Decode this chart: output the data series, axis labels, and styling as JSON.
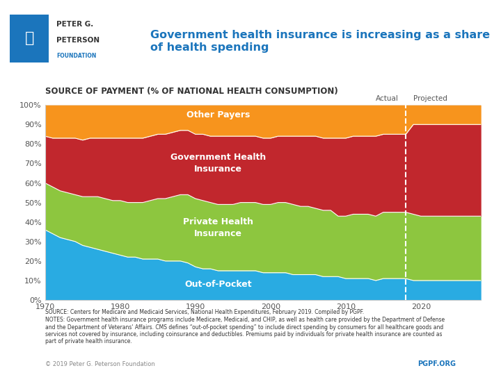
{
  "title": "Government health insurance is increasing as a share of health spending",
  "subtitle": "Source of Payment (% of National Health Consumption)",
  "years": [
    1970,
    1971,
    1972,
    1973,
    1974,
    1975,
    1976,
    1977,
    1978,
    1979,
    1980,
    1981,
    1982,
    1983,
    1984,
    1985,
    1986,
    1987,
    1988,
    1989,
    1990,
    1991,
    1992,
    1993,
    1994,
    1995,
    1996,
    1997,
    1998,
    1999,
    2000,
    2001,
    2002,
    2003,
    2004,
    2005,
    2006,
    2007,
    2008,
    2009,
    2010,
    2011,
    2012,
    2013,
    2014,
    2015,
    2016,
    2017,
    2018,
    2019,
    2020,
    2021,
    2022,
    2023,
    2024,
    2025,
    2026,
    2027,
    2028
  ],
  "out_of_pocket": [
    36,
    34,
    32,
    31,
    30,
    28,
    27,
    26,
    25,
    24,
    23,
    22,
    22,
    21,
    21,
    21,
    20,
    20,
    20,
    19,
    17,
    16,
    16,
    15,
    15,
    15,
    15,
    15,
    15,
    14,
    14,
    14,
    14,
    13,
    13,
    13,
    13,
    12,
    12,
    12,
    11,
    11,
    11,
    11,
    10,
    11,
    11,
    11,
    11,
    10,
    10,
    10,
    10,
    10,
    10,
    10,
    10,
    10,
    10
  ],
  "private_health": [
    24,
    24,
    24,
    24,
    24,
    25,
    26,
    27,
    27,
    27,
    28,
    28,
    28,
    29,
    30,
    31,
    32,
    33,
    34,
    35,
    35,
    35,
    34,
    34,
    34,
    34,
    35,
    35,
    35,
    35,
    35,
    36,
    36,
    36,
    35,
    35,
    34,
    34,
    34,
    31,
    32,
    33,
    33,
    33,
    33,
    34,
    34,
    34,
    34,
    34,
    33,
    33,
    33,
    33,
    33,
    33,
    33,
    33,
    33
  ],
  "government_health": [
    24,
    25,
    27,
    28,
    29,
    29,
    30,
    30,
    31,
    32,
    32,
    33,
    33,
    33,
    33,
    33,
    33,
    33,
    33,
    33,
    33,
    34,
    34,
    35,
    35,
    35,
    34,
    34,
    34,
    34,
    34,
    34,
    34,
    35,
    36,
    36,
    37,
    37,
    37,
    40,
    40,
    40,
    40,
    40,
    41,
    40,
    40,
    40,
    40,
    46,
    47,
    47,
    47,
    47,
    47,
    47,
    47,
    47,
    47
  ],
  "other_payers": [
    16,
    17,
    17,
    17,
    17,
    18,
    17,
    17,
    17,
    17,
    17,
    17,
    17,
    17,
    16,
    15,
    15,
    14,
    13,
    13,
    15,
    15,
    16,
    16,
    16,
    16,
    16,
    16,
    16,
    17,
    17,
    16,
    16,
    16,
    16,
    16,
    16,
    17,
    17,
    17,
    17,
    16,
    16,
    16,
    16,
    15,
    15,
    15,
    15,
    10,
    10,
    10,
    10,
    10,
    10,
    10,
    10,
    10,
    10
  ],
  "colors": {
    "out_of_pocket": "#29ABE2",
    "private_health": "#8DC63F",
    "government_health": "#C1272D",
    "other_payers": "#F7941D"
  },
  "projected_year": 2018,
  "xlim": [
    1970,
    2028
  ],
  "ylim": [
    0,
    100
  ],
  "source_text": "SOURCE: Centers for Medicare and Medicaid Services, National Health Expenditures, February 2019. Compiled by PGPF.",
  "notes_text": "NOTES: Government health insurance programs include Medicare, Medicaid, and CHIP, as well as health care provided by the Department of Defense\nand the Department of Veterans' Affairs. CMS defines “out-of-pocket spending” to include direct spending by consumers for all healthcare goods and\nservices not covered by insurance, including coinsurance and deductibles. Premiums paid by individuals for private health insurance are counted as\npart of private health insurance.",
  "copyright_text": "© 2019 Peter G. Peterson Foundation",
  "pgpf_text": "PGPF.ORG",
  "header_title_color": "#1B75BC",
  "pgpf_color": "#1B75BC"
}
